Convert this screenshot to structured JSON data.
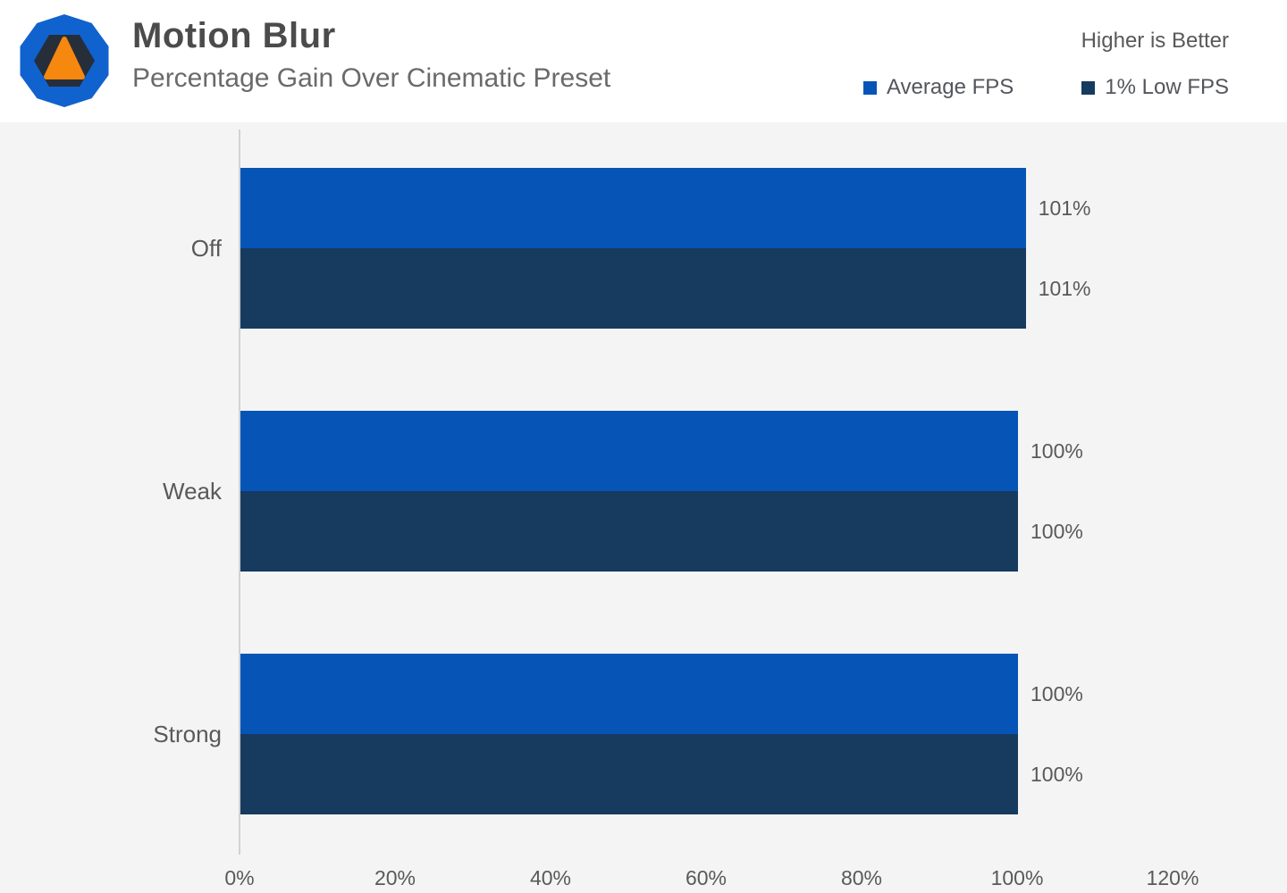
{
  "chart_data": {
    "type": "bar",
    "orientation": "horizontal",
    "title": "Motion Blur",
    "subtitle": "Percentage Gain Over Cinematic Preset",
    "note": "Higher is Better",
    "categories": [
      "Off",
      "Weak",
      "Strong"
    ],
    "series": [
      {
        "name": "Average FPS",
        "color": "#0554b6",
        "values": [
          101,
          100,
          100
        ],
        "labels": [
          "101%",
          "100%",
          "100%"
        ]
      },
      {
        "name": "1% Low FPS",
        "color": "#173a5f",
        "values": [
          101,
          100,
          100
        ],
        "labels": [
          "101%",
          "100%",
          "100%"
        ]
      }
    ],
    "x_ticks": [
      {
        "value": 0,
        "label": "0%"
      },
      {
        "value": 20,
        "label": "20%"
      },
      {
        "value": 40,
        "label": "40%"
      },
      {
        "value": 60,
        "label": "60%"
      },
      {
        "value": 80,
        "label": "80%"
      },
      {
        "value": 100,
        "label": "100%"
      },
      {
        "value": 120,
        "label": "120%"
      }
    ],
    "xlim": [
      0,
      120
    ],
    "grid": false,
    "legend_position": "top-right",
    "colors": {
      "header_background": "#ffffff",
      "chart_background": "#f4f4f4",
      "axis_line": "#d2d2d2",
      "text": "#595959",
      "title_text": "#4b4b4b",
      "subtitle_text": "#6a6a6a"
    }
  },
  "logo": {
    "description": "blue decagon with dark hexagon and orange triangle",
    "outer_color": "#1062cf",
    "hexagon_color": "#262e3a",
    "triangle_color": "#f6870f"
  }
}
